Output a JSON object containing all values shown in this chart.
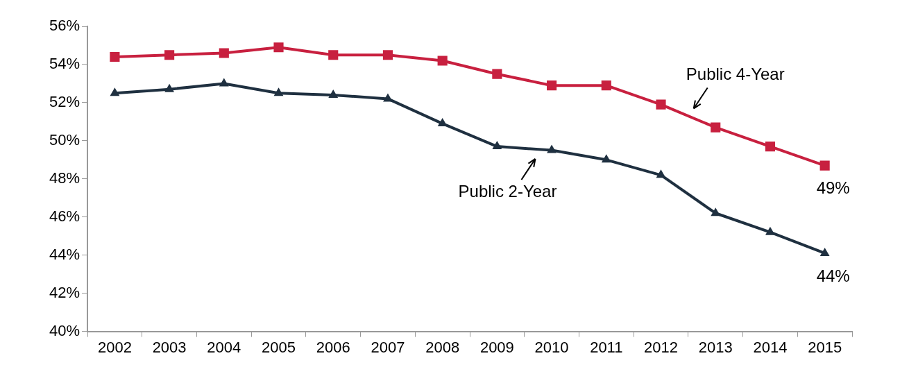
{
  "chart_data": {
    "type": "line",
    "categories": [
      "2002",
      "2003",
      "2004",
      "2005",
      "2006",
      "2007",
      "2008",
      "2009",
      "2010",
      "2011",
      "2012",
      "2013",
      "2014",
      "2015"
    ],
    "series": [
      {
        "name": "Public 4-Year",
        "color": "#c8203f",
        "marker": "square",
        "values": [
          54.4,
          54.5,
          54.6,
          54.9,
          54.5,
          54.5,
          54.2,
          53.5,
          52.9,
          52.9,
          51.9,
          50.7,
          49.7,
          48.7
        ]
      },
      {
        "name": "Public 2-Year",
        "color": "#1f3040",
        "marker": "triangle",
        "values": [
          52.5,
          52.7,
          53.0,
          52.5,
          52.4,
          52.2,
          50.9,
          49.7,
          49.5,
          49.0,
          48.2,
          46.2,
          45.2,
          44.1
        ]
      }
    ],
    "ylim": [
      40,
      56
    ],
    "yticks": [
      {
        "value": 40,
        "label": "40%"
      },
      {
        "value": 42,
        "label": "42%"
      },
      {
        "value": 44,
        "label": "44%"
      },
      {
        "value": 46,
        "label": "46%"
      },
      {
        "value": 48,
        "label": "48%"
      },
      {
        "value": 50,
        "label": "50%"
      },
      {
        "value": 52,
        "label": "52%"
      },
      {
        "value": 54,
        "label": "54%"
      },
      {
        "value": 56,
        "label": "56%"
      }
    ],
    "annotations": [
      {
        "text": "49%",
        "x": "2015",
        "y": 48.7
      },
      {
        "text": "44%",
        "x": "2015",
        "y": 44.1
      }
    ],
    "grid": false,
    "legend": false
  }
}
